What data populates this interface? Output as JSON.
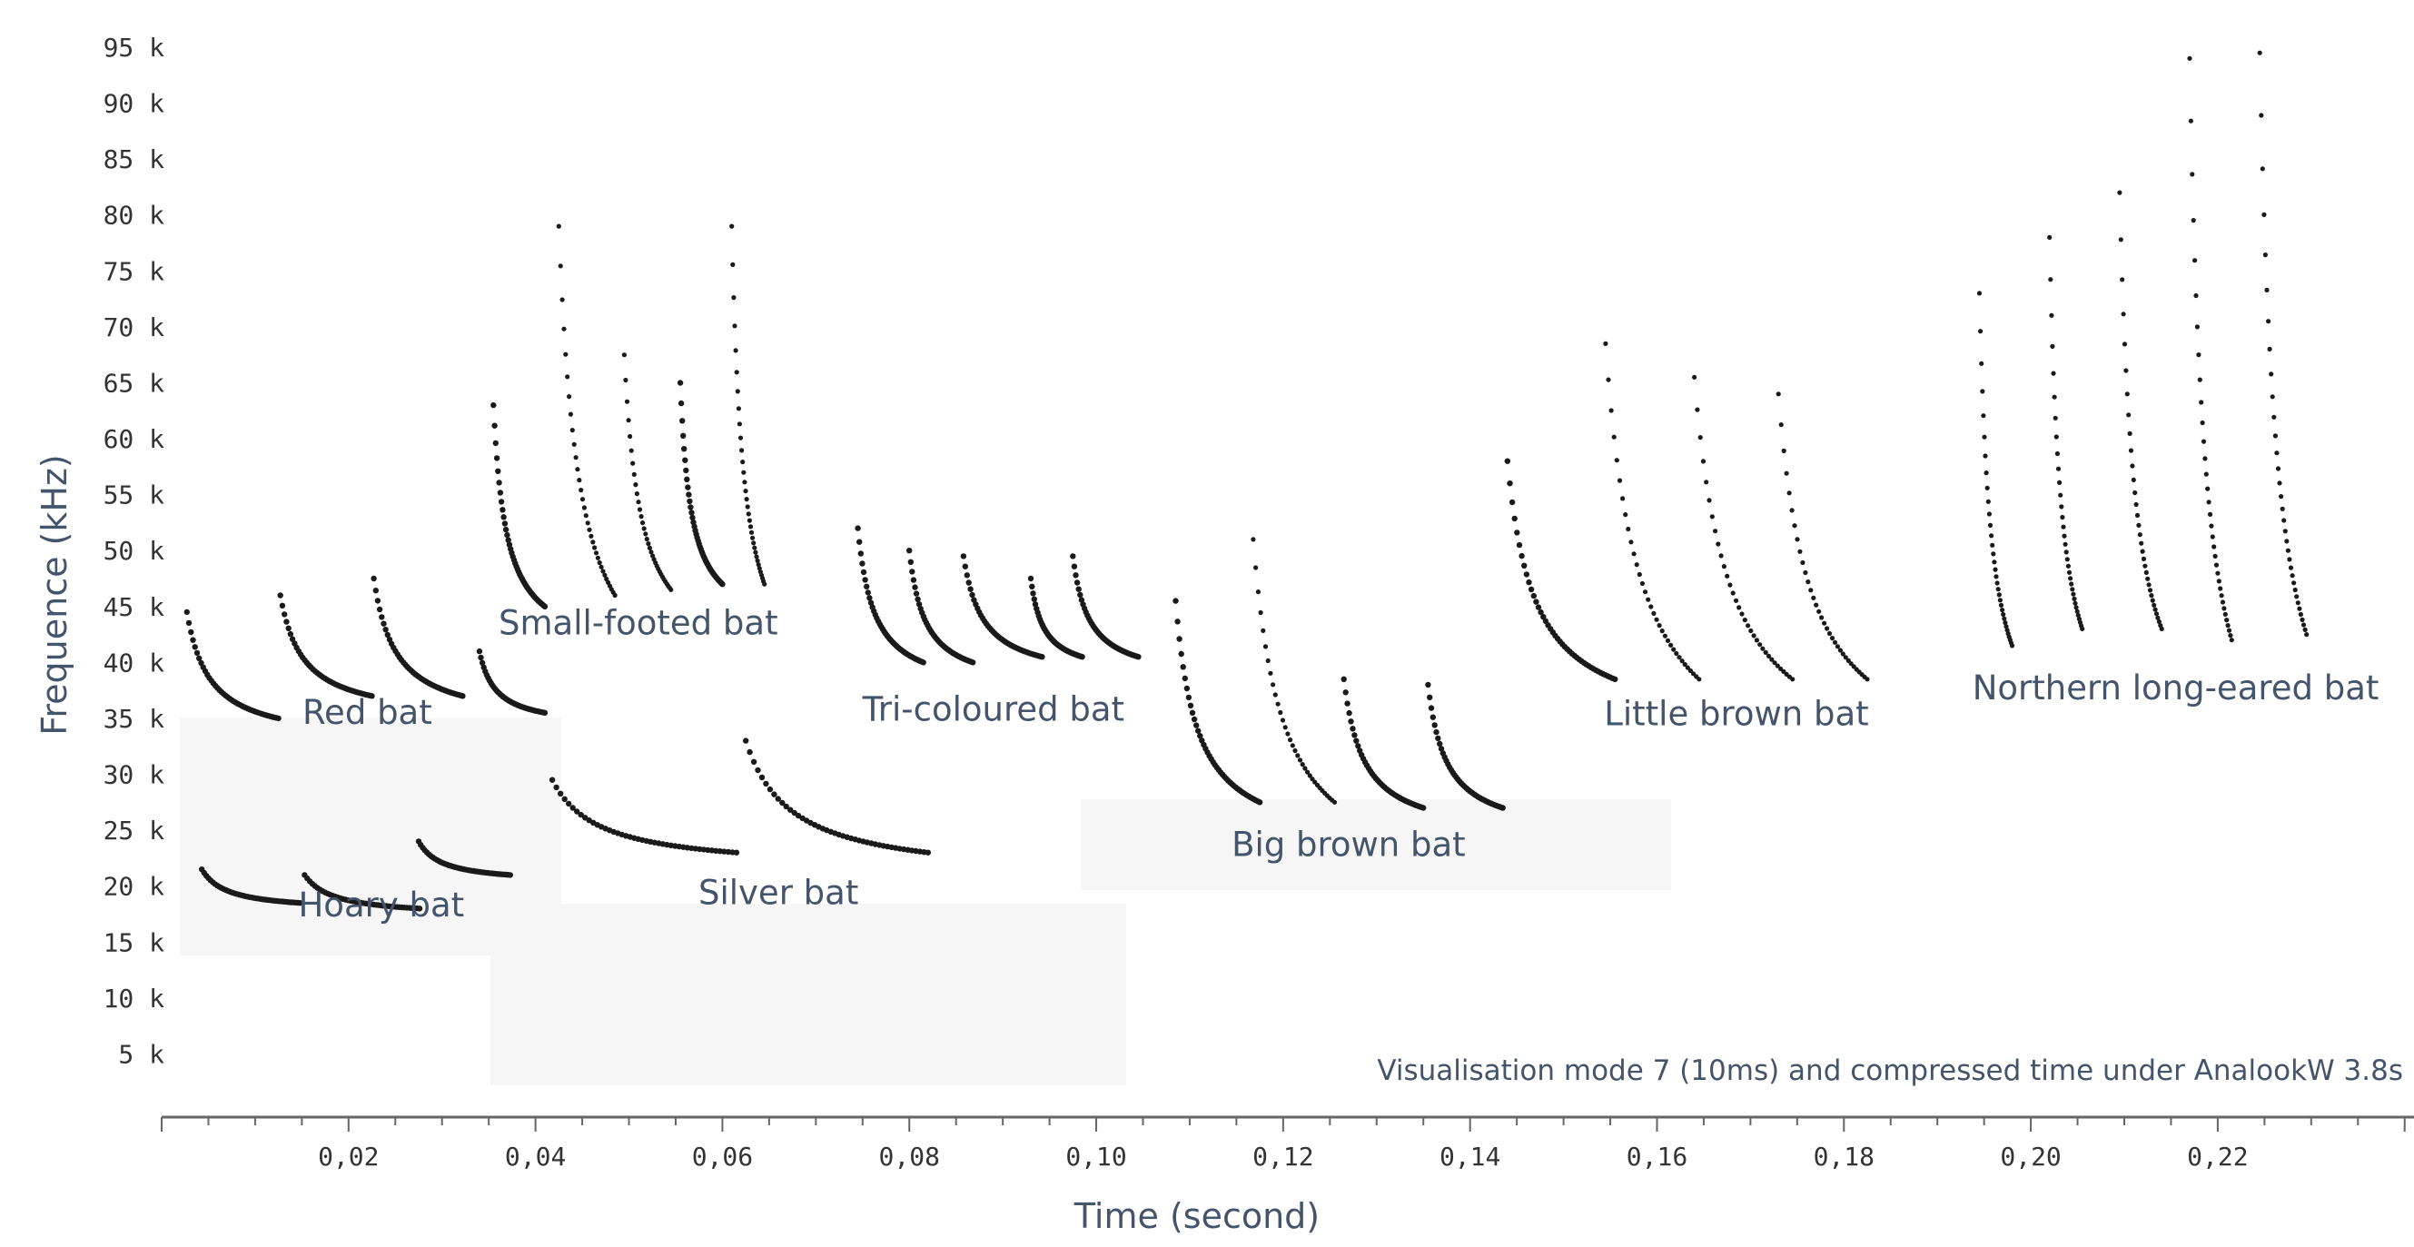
{
  "chart_data": {
    "type": "scatter",
    "xlabel": "Time (second)",
    "ylabel": "Frequence (kHz)",
    "xlim": [
      0,
      0.241
    ],
    "ylim": [
      0,
      95
    ],
    "x_ticks": [
      {
        "value": 0.02,
        "label": "0,02"
      },
      {
        "value": 0.04,
        "label": "0,04"
      },
      {
        "value": 0.06,
        "label": "0,06"
      },
      {
        "value": 0.08,
        "label": "0,08"
      },
      {
        "value": 0.1,
        "label": "0,10"
      },
      {
        "value": 0.12,
        "label": "0,12"
      },
      {
        "value": 0.14,
        "label": "0,14"
      },
      {
        "value": 0.16,
        "label": "0,16"
      },
      {
        "value": 0.18,
        "label": "0,18"
      },
      {
        "value": 0.2,
        "label": "0,20"
      },
      {
        "value": 0.22,
        "label": "0,22"
      }
    ],
    "y_ticks": [
      {
        "value": 5,
        "label": "5 k"
      },
      {
        "value": 10,
        "label": "10 k"
      },
      {
        "value": 15,
        "label": "15 k"
      },
      {
        "value": 20,
        "label": "20 k"
      },
      {
        "value": 25,
        "label": "25 k"
      },
      {
        "value": 30,
        "label": "30 k"
      },
      {
        "value": 35,
        "label": "35 k"
      },
      {
        "value": 40,
        "label": "40 k"
      },
      {
        "value": 45,
        "label": "45 k"
      },
      {
        "value": 50,
        "label": "50 k"
      },
      {
        "value": 55,
        "label": "55 k"
      },
      {
        "value": 60,
        "label": "60 k"
      },
      {
        "value": 65,
        "label": "65 k"
      },
      {
        "value": 70,
        "label": "70 k"
      },
      {
        "value": 75,
        "label": "75 k"
      },
      {
        "value": 80,
        "label": "80 k"
      },
      {
        "value": 85,
        "label": "85 k"
      },
      {
        "value": 90,
        "label": "90 k"
      },
      {
        "value": 95,
        "label": "95 k"
      }
    ],
    "annotation": "Visualisation mode 7 (10ms) and compressed time under AnalookW 3.8s",
    "series": [
      {
        "name": "Red bat",
        "label_at": [
          0.022,
          34.5
        ],
        "calls": [
          {
            "t0": 0.0027,
            "t1": 0.0125,
            "f0": 44.5,
            "f1": 35.0
          },
          {
            "t0": 0.0127,
            "t1": 0.0225,
            "f0": 46.0,
            "f1": 37.0
          },
          {
            "t0": 0.0227,
            "t1": 0.0322,
            "f0": 47.5,
            "f1": 37.0
          },
          {
            "t0": 0.034,
            "t1": 0.041,
            "f0": 41.0,
            "f1": 35.5
          }
        ]
      },
      {
        "name": "Hoary bat",
        "label_at": [
          0.0235,
          17.3
        ],
        "calls": [
          {
            "t0": 0.0043,
            "t1": 0.0148,
            "f0": 21.5,
            "f1": 18.5
          },
          {
            "t0": 0.0153,
            "t1": 0.0276,
            "f0": 21.0,
            "f1": 18.0
          },
          {
            "t0": 0.0275,
            "t1": 0.0373,
            "f0": 24.0,
            "f1": 21.0
          }
        ]
      },
      {
        "name": "Small-footed bat",
        "label_at": [
          0.051,
          42.5
        ],
        "calls": [
          {
            "t0": 0.0355,
            "t1": 0.041,
            "f0": 63.0,
            "f1": 45.0
          },
          {
            "t0": 0.0425,
            "t1": 0.0485,
            "f0": 79.0,
            "f1": 46.0
          },
          {
            "t0": 0.0495,
            "t1": 0.0545,
            "f0": 67.5,
            "f1": 46.5
          },
          {
            "t0": 0.0555,
            "t1": 0.06,
            "f0": 65.0,
            "f1": 47.0
          },
          {
            "t0": 0.061,
            "t1": 0.0645,
            "f0": 79.0,
            "f1": 47.0
          }
        ]
      },
      {
        "name": "Silver bat",
        "label_at": [
          0.066,
          18.4
        ],
        "calls": [
          {
            "t0": 0.0418,
            "t1": 0.0615,
            "f0": 29.5,
            "f1": 23.0
          },
          {
            "t0": 0.0625,
            "t1": 0.082,
            "f0": 33.0,
            "f1": 23.0
          }
        ]
      },
      {
        "name": "Tri-coloured bat",
        "label_at": [
          0.089,
          34.8
        ],
        "calls": [
          {
            "t0": 0.0745,
            "t1": 0.0815,
            "f0": 52.0,
            "f1": 40.0
          },
          {
            "t0": 0.08,
            "t1": 0.0868,
            "f0": 50.0,
            "f1": 40.0
          },
          {
            "t0": 0.0858,
            "t1": 0.0942,
            "f0": 49.5,
            "f1": 40.5
          },
          {
            "t0": 0.093,
            "t1": 0.0985,
            "f0": 47.5,
            "f1": 40.5
          },
          {
            "t0": 0.0975,
            "t1": 0.1045,
            "f0": 49.5,
            "f1": 40.5
          }
        ]
      },
      {
        "name": "Big brown bat",
        "label_at": [
          0.127,
          22.7
        ],
        "calls": [
          {
            "t0": 0.1085,
            "t1": 0.1175,
            "f0": 45.5,
            "f1": 27.5
          },
          {
            "t0": 0.1168,
            "t1": 0.1255,
            "f0": 51.0,
            "f1": 27.5
          },
          {
            "t0": 0.1265,
            "t1": 0.135,
            "f0": 38.5,
            "f1": 27.0
          },
          {
            "t0": 0.1355,
            "t1": 0.1435,
            "f0": 38.0,
            "f1": 27.0
          }
        ]
      },
      {
        "name": "Little brown bat",
        "label_at": [
          0.1685,
          34.4
        ],
        "calls": [
          {
            "t0": 0.144,
            "t1": 0.1555,
            "f0": 58.0,
            "f1": 38.5
          },
          {
            "t0": 0.1545,
            "t1": 0.1645,
            "f0": 68.5,
            "f1": 38.5
          },
          {
            "t0": 0.164,
            "t1": 0.1745,
            "f0": 65.5,
            "f1": 38.5
          },
          {
            "t0": 0.173,
            "t1": 0.1825,
            "f0": 64.0,
            "f1": 38.5
          }
        ]
      },
      {
        "name": "Northern long-eared bat",
        "label_at": [
          0.2155,
          36.7
        ],
        "calls": [
          {
            "t0": 0.1945,
            "t1": 0.198,
            "f0": 73.0,
            "f1": 41.5
          },
          {
            "t0": 0.202,
            "t1": 0.2055,
            "f0": 78.0,
            "f1": 43.0
          },
          {
            "t0": 0.2095,
            "t1": 0.214,
            "f0": 82.0,
            "f1": 43.0
          },
          {
            "t0": 0.217,
            "t1": 0.2215,
            "f0": 94.0,
            "f1": 42.0
          },
          {
            "t0": 0.2245,
            "t1": 0.2295,
            "f0": 94.5,
            "f1": 42.5
          }
        ]
      }
    ]
  }
}
